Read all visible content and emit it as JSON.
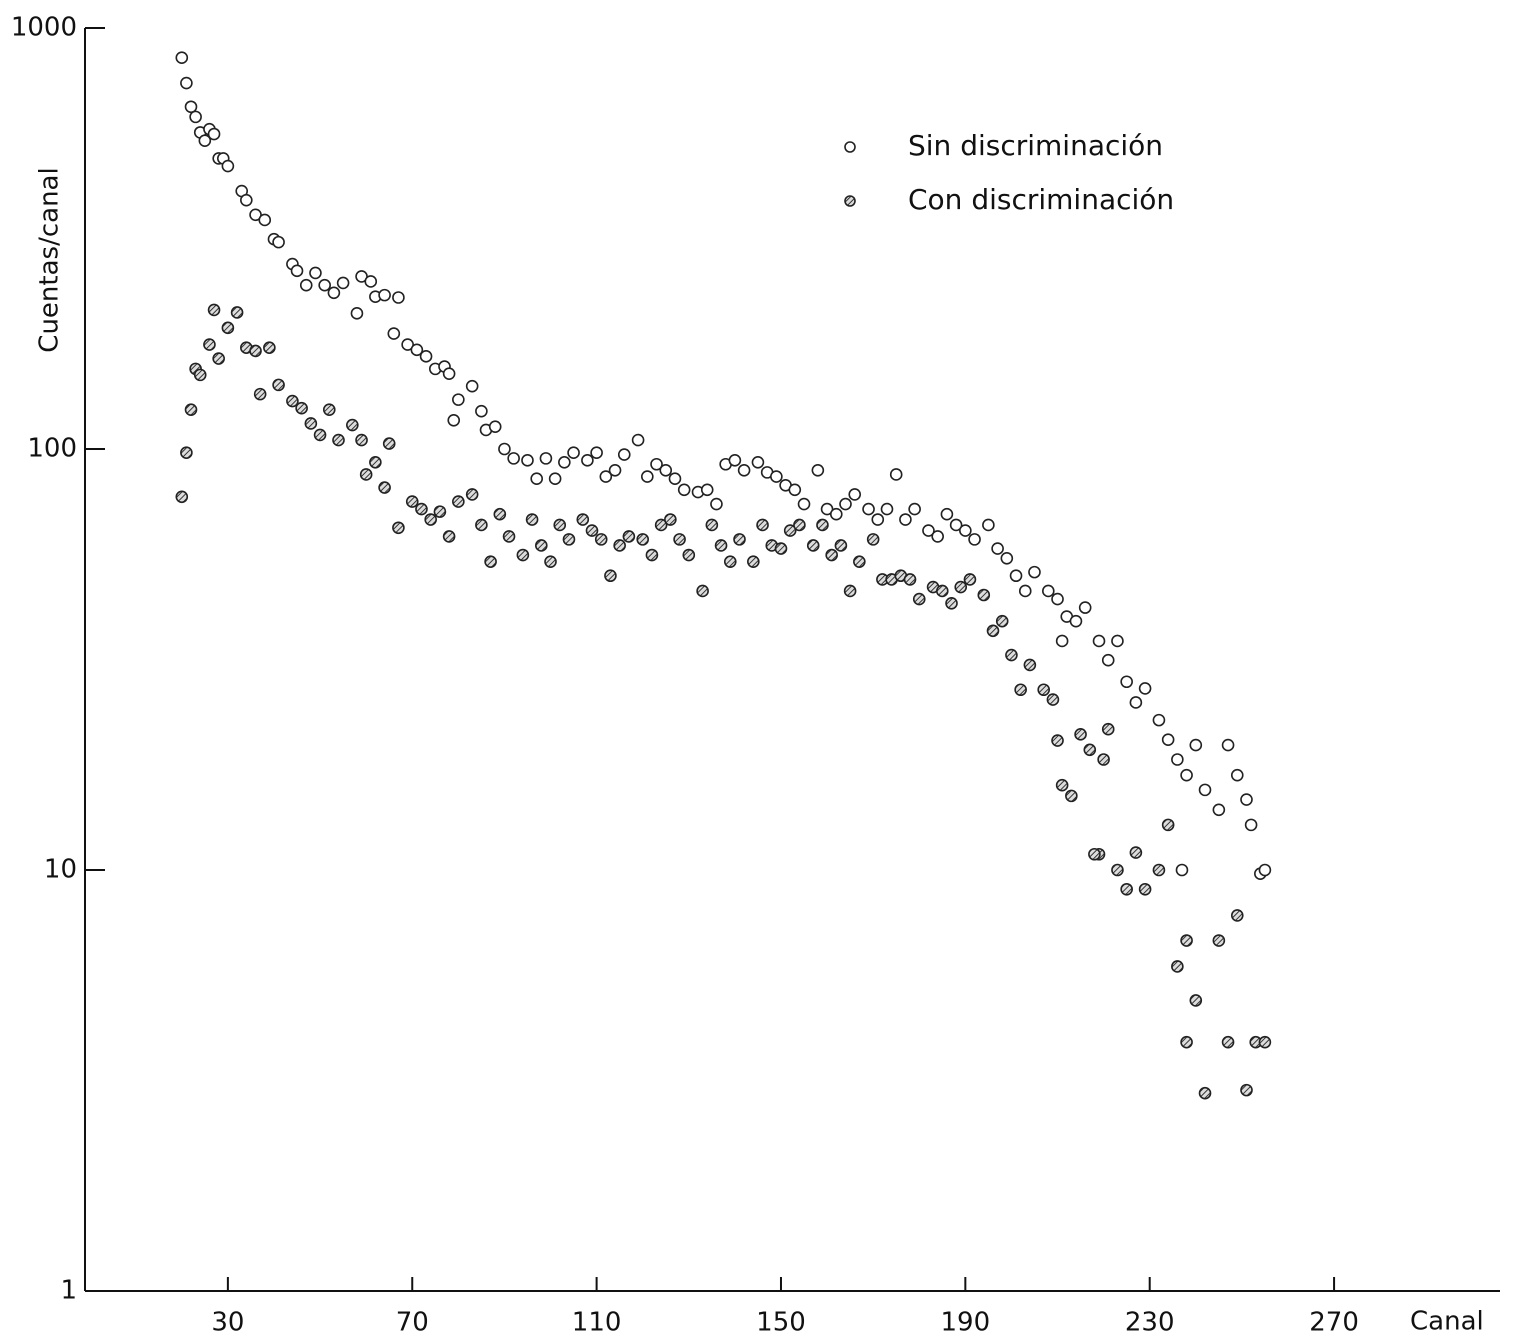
{
  "chart_data": {
    "type": "scatter",
    "x_label": "Canal",
    "y_label": "Cuentas/canal",
    "xlim": [
      -1,
      306
    ],
    "ylim": [
      1,
      1000
    ],
    "log_y": true,
    "xticks": [
      30,
      70,
      110,
      150,
      190,
      230,
      270
    ],
    "yticks": [
      1,
      10,
      100,
      1000
    ],
    "legend_position": "upper right",
    "series": [
      {
        "name": "Sin discriminación",
        "color": "#ffffff",
        "x": [
          20,
          21,
          22,
          23,
          24,
          25,
          26,
          27,
          28,
          29,
          30,
          33,
          34,
          36,
          38,
          40,
          41,
          44,
          45,
          47,
          49,
          51,
          53,
          55,
          58,
          59,
          61,
          62,
          64,
          66,
          67,
          69,
          71,
          73,
          75,
          77,
          78,
          79,
          80,
          83,
          85,
          86,
          88,
          90,
          92,
          95,
          97,
          99,
          101,
          103,
          105,
          108,
          110,
          112,
          114,
          116,
          119,
          121,
          123,
          125,
          127,
          129,
          132,
          134,
          136,
          138,
          140,
          142,
          145,
          147,
          149,
          151,
          153,
          155,
          158,
          160,
          162,
          164,
          166,
          169,
          171,
          173,
          175,
          177,
          179,
          182,
          184,
          186,
          188,
          190,
          192,
          195,
          197,
          199,
          201,
          203,
          205,
          208,
          210,
          211,
          212,
          214,
          216,
          219,
          221,
          223,
          225,
          227,
          229,
          232,
          234,
          236,
          237,
          238,
          240,
          242,
          245,
          247,
          249,
          251,
          252,
          254,
          255
        ],
        "values": [
          850,
          740,
          650,
          615,
          565,
          540,
          575,
          560,
          490,
          490,
          470,
          410,
          390,
          360,
          350,
          315,
          310,
          275,
          265,
          245,
          262,
          245,
          235,
          248,
          210,
          257,
          250,
          230,
          232,
          188,
          229,
          177,
          172,
          166,
          155,
          157,
          151,
          117,
          131,
          141,
          123,
          111,
          113,
          100,
          95,
          94,
          85,
          95,
          85,
          93,
          98,
          94,
          98,
          86,
          89,
          97,
          105,
          86,
          92,
          89,
          85,
          80,
          79,
          80,
          74,
          92,
          94,
          89,
          93,
          88,
          86,
          82,
          80,
          74,
          89,
          72,
          70,
          74,
          78,
          72,
          68,
          72,
          87,
          68,
          72,
          64,
          62,
          70,
          66,
          64,
          61,
          66,
          58,
          55,
          50,
          46,
          51,
          46,
          44,
          35,
          40,
          39,
          42,
          35,
          31.5,
          35,
          28,
          25,
          27,
          22.7,
          20.4,
          18.3,
          10,
          16.8,
          19.8,
          15.5,
          13.9,
          19.8,
          16.8,
          14.7,
          12.8,
          9.8,
          10
        ]
      },
      {
        "name": "Con discriminación",
        "color": "#8a8a8a",
        "x": [
          20,
          21,
          22,
          23,
          24,
          26,
          27,
          28,
          30,
          32,
          34,
          36,
          37,
          39,
          41,
          44,
          46,
          48,
          50,
          52,
          54,
          57,
          59,
          60,
          62,
          64,
          65,
          67,
          70,
          72,
          74,
          76,
          78,
          80,
          83,
          85,
          87,
          89,
          91,
          94,
          96,
          98,
          100,
          102,
          104,
          107,
          109,
          111,
          113,
          115,
          117,
          120,
          122,
          124,
          126,
          128,
          130,
          133,
          135,
          137,
          139,
          141,
          144,
          146,
          148,
          150,
          152,
          154,
          157,
          159,
          161,
          163,
          165,
          167,
          170,
          172,
          174,
          176,
          178,
          180,
          183,
          185,
          187,
          189,
          191,
          194,
          196,
          198,
          200,
          202,
          204,
          207,
          209,
          210,
          211,
          213,
          215,
          217,
          219,
          220,
          221,
          218,
          223,
          225,
          227,
          229,
          232,
          234,
          236,
          238,
          238,
          240,
          242,
          245,
          247,
          249,
          251,
          253,
          255
        ],
        "values": [
          77,
          98,
          124,
          155,
          150,
          177,
          214,
          164,
          194,
          211,
          174,
          171,
          135,
          174,
          142,
          130,
          125,
          115,
          108,
          124,
          105,
          114,
          105,
          87,
          93,
          81,
          103,
          65,
          75,
          72,
          68,
          71,
          62,
          75,
          78,
          66,
          54,
          70,
          62,
          56,
          68,
          59,
          54,
          66,
          61,
          68,
          64,
          61,
          50,
          59,
          62,
          61,
          56,
          66,
          68,
          61,
          56,
          46,
          66,
          59,
          54,
          61,
          54,
          66,
          59,
          58,
          64,
          66,
          59,
          66,
          56,
          59,
          46,
          54,
          61,
          49,
          49,
          50,
          49,
          44,
          47,
          46,
          43,
          47,
          49,
          45,
          37,
          39,
          32.4,
          26.8,
          30.7,
          26.8,
          25.4,
          20.3,
          15.9,
          15,
          21,
          19.3,
          10.9,
          18.3,
          21.6,
          10.9,
          10,
          9,
          11,
          9,
          10,
          12.8,
          5.9,
          6.8,
          3.9,
          4.9,
          2.95,
          6.8,
          3.9,
          7.8,
          3,
          3.9,
          3.9
        ]
      }
    ]
  }
}
